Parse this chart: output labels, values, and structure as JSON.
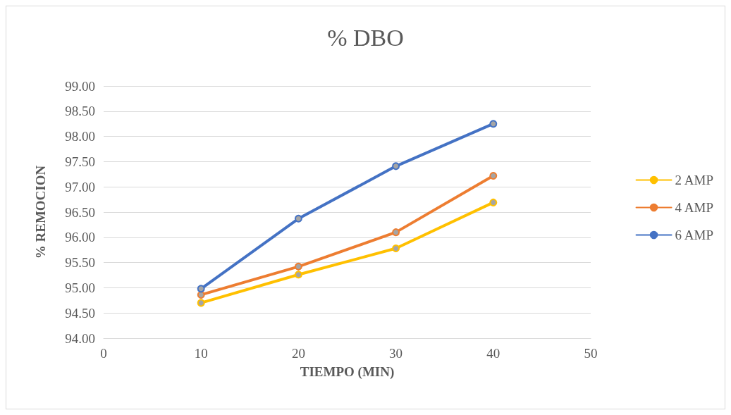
{
  "chart_data": {
    "type": "line",
    "title": "% DBO",
    "xlabel": "TIEMPO (MIN)",
    "ylabel": "% REMOCION",
    "xlim": [
      0,
      50
    ],
    "xticks": [
      0,
      10,
      20,
      30,
      40,
      50
    ],
    "ylim": [
      94,
      99
    ],
    "yticks": [
      {
        "value": 94,
        "label": "94.00"
      },
      {
        "value": 94.5,
        "label": "94.50"
      },
      {
        "value": 95,
        "label": "95.00"
      },
      {
        "value": 95.5,
        "label": "95.50"
      },
      {
        "value": 96,
        "label": "96.00"
      },
      {
        "value": 96.5,
        "label": "96.50"
      },
      {
        "value": 97,
        "label": "97.00"
      },
      {
        "value": 97.5,
        "label": "97.50"
      },
      {
        "value": 98,
        "label": "98.00"
      },
      {
        "value": 98.5,
        "label": "98.50"
      },
      {
        "value": 99,
        "label": "99.00"
      }
    ],
    "x": [
      10,
      20,
      30,
      40
    ],
    "series": [
      {
        "name": "2 AMP",
        "color": "#ffc000",
        "values": [
          94.7,
          95.26,
          95.78,
          96.69
        ]
      },
      {
        "name": "4 AMP",
        "color": "#ed7d31",
        "values": [
          94.86,
          95.42,
          96.1,
          97.22
        ]
      },
      {
        "name": "6 AMP",
        "color": "#4472c4",
        "values": [
          94.98,
          96.37,
          97.41,
          98.25
        ]
      }
    ],
    "grid": "y",
    "legend": "right",
    "marker": "circle",
    "line_style": "solid"
  }
}
